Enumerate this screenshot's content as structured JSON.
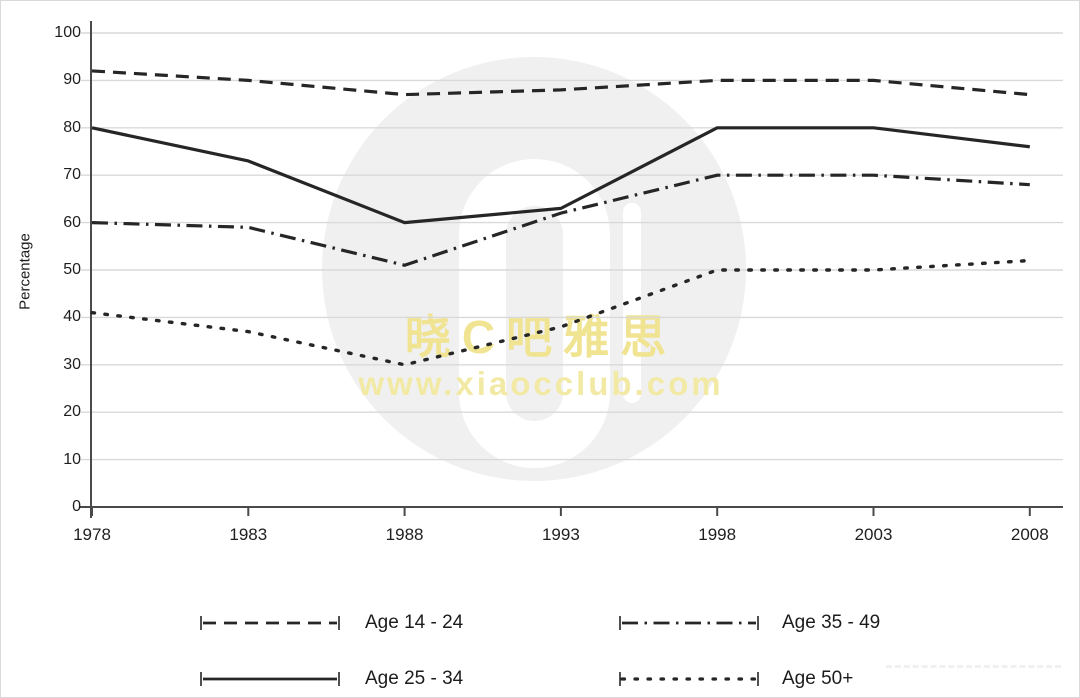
{
  "watermark": {
    "line1": "晓C吧雅思",
    "line2": "www.xiaocclub.com",
    "text_color_line1": "#f0e493",
    "text_color_line2": "#f2e9a4",
    "logo_circle_color": "#f0f0f0"
  },
  "colors": {
    "line": "#262626",
    "grid": "#d9d9d9",
    "axis": "#4a4a4a",
    "tick_text": "#1f1f1f"
  },
  "chart_data": {
    "type": "line",
    "title": "",
    "xlabel": "",
    "ylabel": "Percentage",
    "x": [
      1978,
      1983,
      1988,
      1993,
      1998,
      2003,
      2008
    ],
    "x_tick_labels": [
      "1978",
      "1983",
      "1988",
      "1993",
      "1998",
      "2003",
      "2008"
    ],
    "y_ticks": [
      0,
      10,
      20,
      30,
      40,
      50,
      60,
      70,
      80,
      90,
      100
    ],
    "ylim": [
      0,
      100
    ],
    "grid": true,
    "legend_position": "below",
    "series": [
      {
        "name": "Age 14 - 24",
        "line_style": "dashed",
        "values": [
          92,
          90,
          87,
          88,
          90,
          90,
          87
        ]
      },
      {
        "name": "Age 25 - 34",
        "line_style": "solid",
        "values": [
          80,
          73,
          60,
          63,
          80,
          80,
          76
        ]
      },
      {
        "name": "Age 35 - 49",
        "line_style": "dash-dot",
        "values": [
          60,
          59,
          51,
          62,
          70,
          70,
          68
        ]
      },
      {
        "name": "Age 50+",
        "line_style": "dotted",
        "values": [
          41,
          37,
          30,
          38,
          50,
          50,
          52
        ]
      }
    ]
  }
}
